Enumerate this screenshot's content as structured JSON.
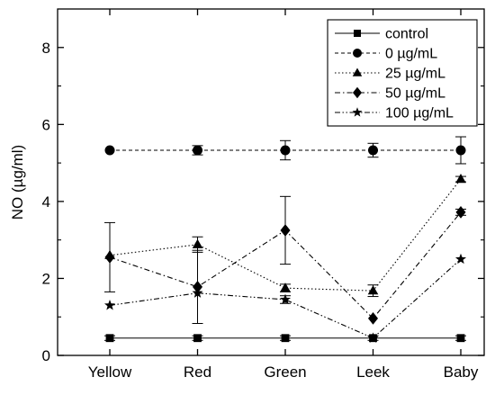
{
  "chart_data": {
    "type": "line",
    "xlabel": "",
    "ylabel": "NO (µg/ml)",
    "ylim": [
      0,
      9
    ],
    "yticks": [
      0,
      2,
      4,
      6,
      8
    ],
    "yticks_labels": [
      "0",
      "2",
      "4",
      "6",
      "8"
    ],
    "categories": [
      "Yellow",
      "Red",
      "Green",
      "Leek",
      "Baby"
    ],
    "grid": false,
    "legend_position": "top-right",
    "series": [
      {
        "name": "control",
        "marker": "square",
        "line_style": "solid",
        "values": [
          0.45,
          0.45,
          0.45,
          0.45,
          0.45
        ],
        "errors": [
          0.06,
          0.06,
          0.06,
          0.06,
          0.06
        ]
      },
      {
        "name": "0 µg/mL",
        "marker": "circle",
        "line_style": "dash",
        "values": [
          5.33,
          5.33,
          5.33,
          5.33,
          5.33
        ],
        "errors": [
          0.04,
          0.12,
          0.25,
          0.18,
          0.35
        ]
      },
      {
        "name": "25 µg/mL",
        "marker": "triangle",
        "line_style": "dot",
        "values": [
          2.6,
          2.88,
          1.75,
          1.68,
          4.58
        ],
        "errors": [
          0.04,
          0.2,
          0.1,
          0.15,
          0.07
        ]
      },
      {
        "name": "50 µg/mL",
        "marker": "diamond",
        "line_style": "dashdot",
        "values": [
          2.55,
          1.78,
          3.25,
          0.96,
          3.72
        ],
        "errors": [
          0.9,
          0.95,
          0.88,
          0.05,
          0.08
        ]
      },
      {
        "name": "100 µg/mL",
        "marker": "star",
        "line_style": "dashdotdot",
        "values": [
          1.3,
          1.62,
          1.45,
          0.45,
          2.5
        ],
        "errors": [
          0.04,
          0.05,
          0.1,
          0.05,
          0.05
        ]
      }
    ]
  }
}
